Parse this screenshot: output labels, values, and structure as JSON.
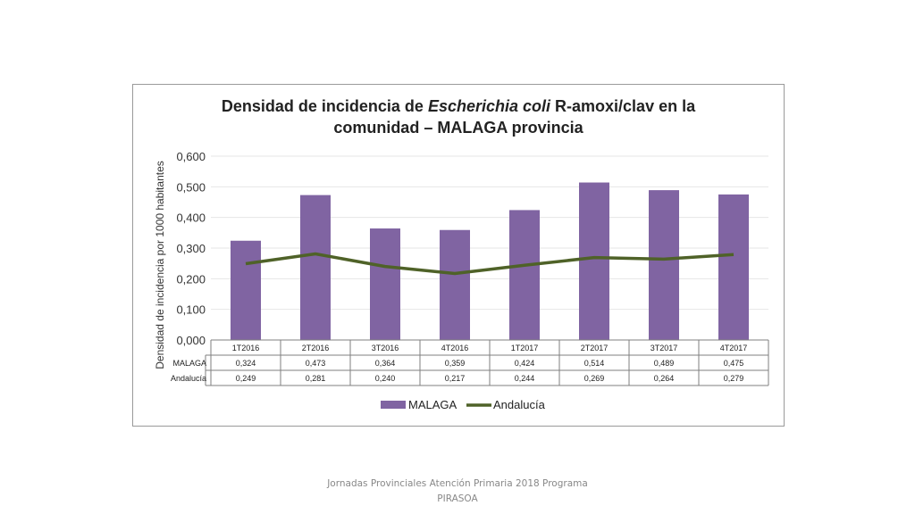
{
  "chart_data": {
    "type": "bar",
    "title_parts": [
      "Densidad de incidencia de ",
      "Escherichia coli",
      " R-amoxi/clav en la"
    ],
    "title_line2": "comunidad – MALAGA provincia",
    "ylabel": "Densidad de incidencia por 1000 habitantes",
    "ylim": [
      0,
      0.6
    ],
    "yticks": [
      "0,000",
      "0,100",
      "0,200",
      "0,300",
      "0,400",
      "0,500",
      "0,600"
    ],
    "categories": [
      "1T2016",
      "2T2016",
      "3T2016",
      "4T2016",
      "1T2017",
      "2T2017",
      "3T2017",
      "4T2017"
    ],
    "series": [
      {
        "name": "MALAGA",
        "kind": "bar",
        "color": "#8064a2",
        "values": [
          0.324,
          0.473,
          0.364,
          0.359,
          0.424,
          0.514,
          0.489,
          0.475
        ],
        "labels": [
          "0,324",
          "0,473",
          "0,364",
          "0,359",
          "0,424",
          "0,514",
          "0,489",
          "0,475"
        ]
      },
      {
        "name": "Andalucía",
        "kind": "line",
        "color": "#4f6228",
        "values": [
          0.249,
          0.281,
          0.24,
          0.217,
          0.244,
          0.269,
          0.264,
          0.279
        ],
        "labels": [
          "0,249",
          "0,281",
          "0,240",
          "0,217",
          "0,244",
          "0,269",
          "0,264",
          "0,279"
        ]
      }
    ],
    "legend": "bottom",
    "grid": true,
    "data_table": true
  },
  "footer": {
    "line1": "Jornadas Provinciales Atención Primaria 2018  Programa",
    "line2": "PIRASOA"
  }
}
